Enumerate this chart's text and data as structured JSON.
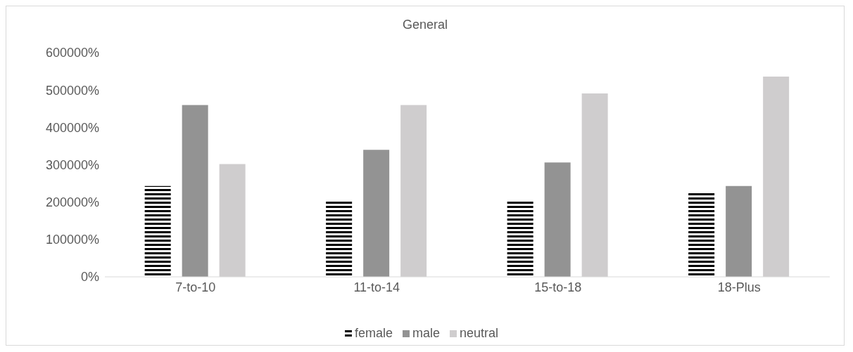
{
  "chart_data": {
    "type": "bar",
    "title": "General",
    "categories": [
      "7-to-10",
      "11-to-14",
      "15-to-18",
      "18-Plus"
    ],
    "series": [
      {
        "name": "female",
        "color": "#000000",
        "values": [
          243000,
          204000,
          206000,
          226000
        ]
      },
      {
        "name": "male",
        "color": "#939393",
        "values": [
          460000,
          340000,
          306000,
          243000
        ]
      },
      {
        "name": "neutral",
        "color": "#cfcdce",
        "values": [
          302000,
          460000,
          491000,
          536000
        ]
      }
    ],
    "ylim": [
      0,
      600000
    ],
    "yticks": [
      {
        "value": 0,
        "label": "0%"
      },
      {
        "value": 100000,
        "label": "100000%"
      },
      {
        "value": 200000,
        "label": "200000%"
      },
      {
        "value": 300000,
        "label": "300000%"
      },
      {
        "value": 400000,
        "label": "400000%"
      },
      {
        "value": 500000,
        "label": "500000%"
      },
      {
        "value": 600000,
        "label": "600000%"
      }
    ],
    "grid": false,
    "legend": "bottom"
  }
}
